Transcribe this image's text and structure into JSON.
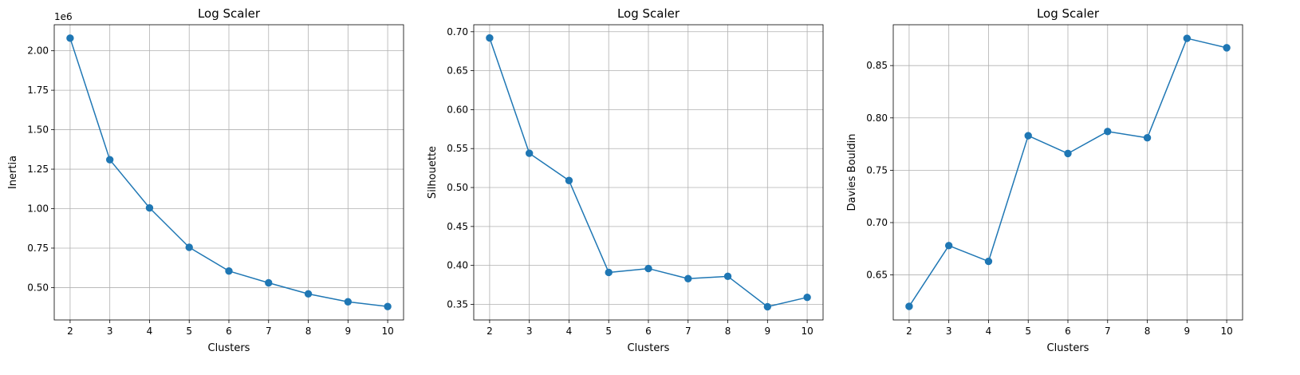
{
  "chart_data": [
    {
      "type": "line",
      "title": "Log Scaler",
      "xlabel": "Clusters",
      "ylabel": "Inertia",
      "offset_label": "1e6",
      "x": [
        2,
        3,
        4,
        5,
        6,
        7,
        8,
        9,
        10
      ],
      "series": [
        {
          "values": [
            2.08,
            1.31,
            1.005,
            0.755,
            0.605,
            0.53,
            0.46,
            0.41,
            0.38
          ],
          "color": "#1f77b4"
        }
      ],
      "xlim": [
        1.6,
        10.4
      ],
      "ylim": [
        0.295,
        2.165
      ],
      "yticks": [
        0.5,
        0.75,
        1.0,
        1.25,
        1.5,
        1.75,
        2.0
      ],
      "ytick_labels": [
        "0.50",
        "0.75",
        "1.00",
        "1.25",
        "1.50",
        "1.75",
        "2.00"
      ],
      "xticks": [
        2,
        3,
        4,
        5,
        6,
        7,
        8,
        9,
        10
      ],
      "xtick_labels": [
        "2",
        "3",
        "4",
        "5",
        "6",
        "7",
        "8",
        "9",
        "10"
      ],
      "grid": true,
      "marker": "circle"
    },
    {
      "type": "line",
      "title": "Log Scaler",
      "xlabel": "Clusters",
      "ylabel": "Silhouette",
      "x": [
        2,
        3,
        4,
        5,
        6,
        7,
        8,
        9,
        10
      ],
      "series": [
        {
          "values": [
            0.692,
            0.544,
            0.509,
            0.391,
            0.396,
            0.383,
            0.386,
            0.347,
            0.359
          ],
          "color": "#1f77b4"
        }
      ],
      "xlim": [
        1.6,
        10.4
      ],
      "ylim": [
        0.33,
        0.709
      ],
      "yticks": [
        0.35,
        0.4,
        0.45,
        0.5,
        0.55,
        0.6,
        0.65,
        0.7
      ],
      "ytick_labels": [
        "0.35",
        "0.40",
        "0.45",
        "0.50",
        "0.55",
        "0.60",
        "0.65",
        "0.70"
      ],
      "xticks": [
        2,
        3,
        4,
        5,
        6,
        7,
        8,
        9,
        10
      ],
      "xtick_labels": [
        "2",
        "3",
        "4",
        "5",
        "6",
        "7",
        "8",
        "9",
        "10"
      ],
      "grid": true,
      "marker": "circle"
    },
    {
      "type": "line",
      "title": "Log Scaler",
      "xlabel": "Clusters",
      "ylabel": "Davies Bouldin",
      "x": [
        2,
        3,
        4,
        5,
        6,
        7,
        8,
        9,
        10
      ],
      "series": [
        {
          "values": [
            0.62,
            0.678,
            0.663,
            0.783,
            0.766,
            0.787,
            0.781,
            0.876,
            0.867
          ],
          "color": "#1f77b4"
        }
      ],
      "xlim": [
        1.6,
        10.4
      ],
      "ylim": [
        0.607,
        0.889
      ],
      "yticks": [
        0.65,
        0.7,
        0.75,
        0.8,
        0.85
      ],
      "ytick_labels": [
        "0.65",
        "0.70",
        "0.75",
        "0.80",
        "0.85"
      ],
      "xticks": [
        2,
        3,
        4,
        5,
        6,
        7,
        8,
        9,
        10
      ],
      "xtick_labels": [
        "2",
        "3",
        "4",
        "5",
        "6",
        "7",
        "8",
        "9",
        "10"
      ],
      "grid": true,
      "marker": "circle"
    }
  ]
}
